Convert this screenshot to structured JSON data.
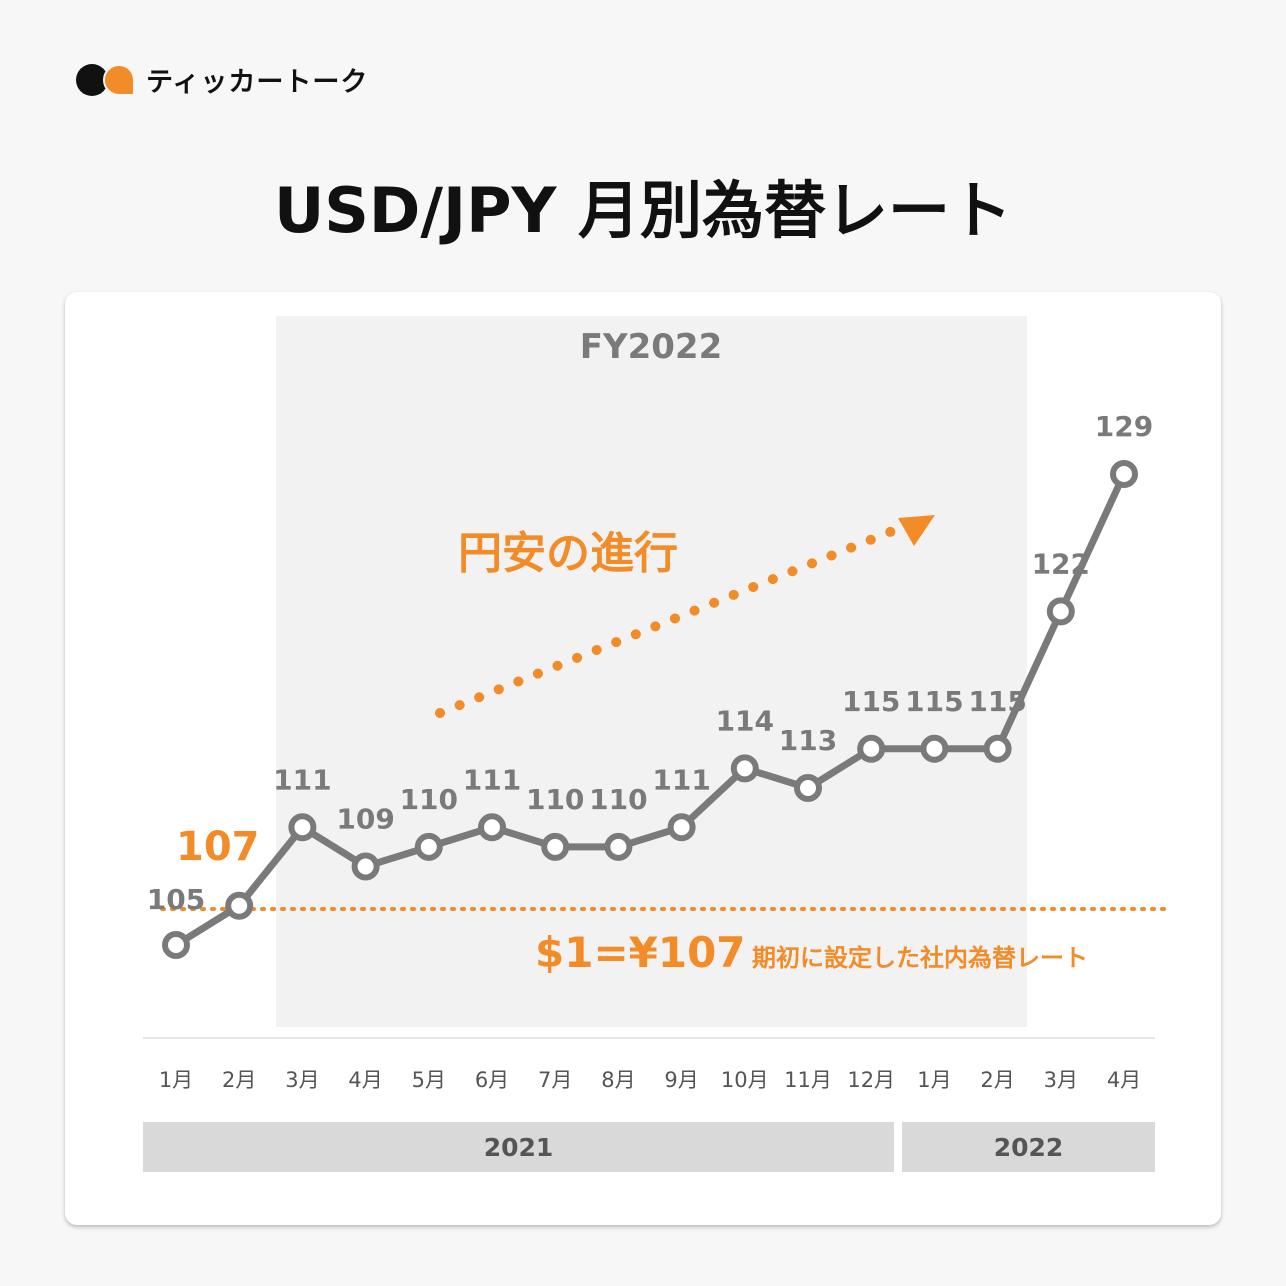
{
  "logo": {
    "text": "ティッカートーク"
  },
  "title": "USD/JPY 月別為替レート",
  "colors": {
    "accent": "#f28c28",
    "line": "#7a7a7a",
    "shade": "#f2f2f2",
    "year_bar": "#d9d9d9"
  },
  "chart_data": {
    "type": "line",
    "title": "USD/JPY 月別為替レート",
    "categories": [
      "1月",
      "2月",
      "3月",
      "4月",
      "5月",
      "6月",
      "7月",
      "8月",
      "9月",
      "10月",
      "11月",
      "12月",
      "1月",
      "2月",
      "3月",
      "4月"
    ],
    "years": [
      {
        "label": "2021",
        "span": 12
      },
      {
        "label": "2022",
        "span": 4
      }
    ],
    "series": [
      {
        "name": "USD/JPY",
        "values": [
          105,
          107,
          111,
          109,
          110,
          111,
          110,
          110,
          111,
          114,
          113,
          115,
          115,
          115,
          122,
          129
        ]
      }
    ],
    "highlight": {
      "label": "FY2022",
      "from_index": 2,
      "to_index": 13
    },
    "reference": {
      "value": 107,
      "label": "$1=¥107",
      "note": "期初に設定した社内為替レート"
    },
    "annotation": "円安の進行",
    "highlight_value_label": "107",
    "ylim": [
      105,
      129
    ]
  }
}
